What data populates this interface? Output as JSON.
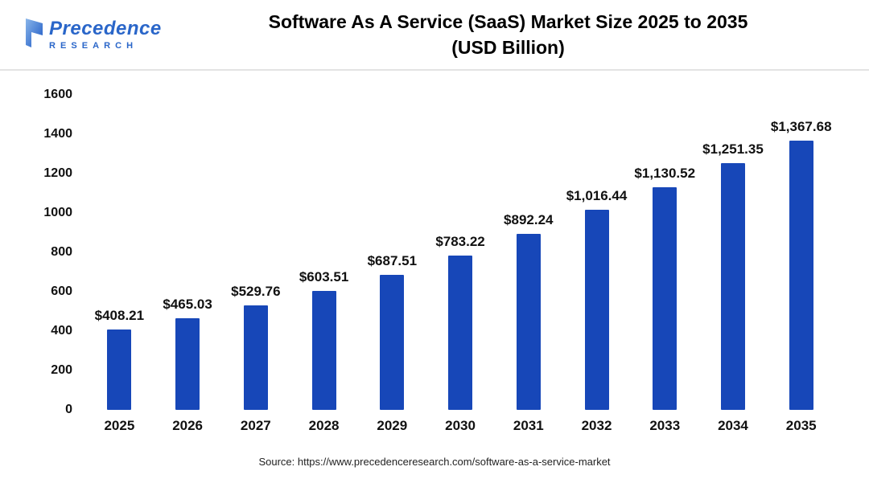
{
  "header": {
    "logo": {
      "name": "Precedence",
      "subname": "RESEARCH"
    },
    "title_line1": "Software As A Service (SaaS) Market Size 2025 to 2035",
    "title_line2": "(USD Billion)"
  },
  "chart_data": {
    "type": "bar",
    "title": "Software As A Service (SaaS) Market Size 2025 to 2035 (USD Billion)",
    "categories": [
      "2025",
      "2026",
      "2027",
      "2028",
      "2029",
      "2030",
      "2031",
      "2032",
      "2033",
      "2034",
      "2035"
    ],
    "values": [
      408.21,
      465.03,
      529.76,
      603.51,
      687.51,
      783.22,
      892.24,
      1016.44,
      1130.52,
      1251.35,
      1367.68
    ],
    "value_labels": [
      "$408.21",
      "$465.03",
      "$529.76",
      "$603.51",
      "$687.51",
      "$783.22",
      "$892.24",
      "$1,016.44",
      "$1,130.52",
      "$1,251.35",
      "$1,367.68"
    ],
    "xlabel": "",
    "ylabel": "",
    "ylim": [
      0,
      1600
    ],
    "yticks": [
      0,
      200,
      400,
      600,
      800,
      1000,
      1200,
      1400,
      1600
    ],
    "grid": false,
    "legend": false
  },
  "colors": {
    "bar": "#1747B8",
    "logo_blue": "#2A66C9",
    "title": "#000000"
  },
  "footer": {
    "source": "Source: https://www.precedenceresearch.com/software-as-a-service-market"
  }
}
